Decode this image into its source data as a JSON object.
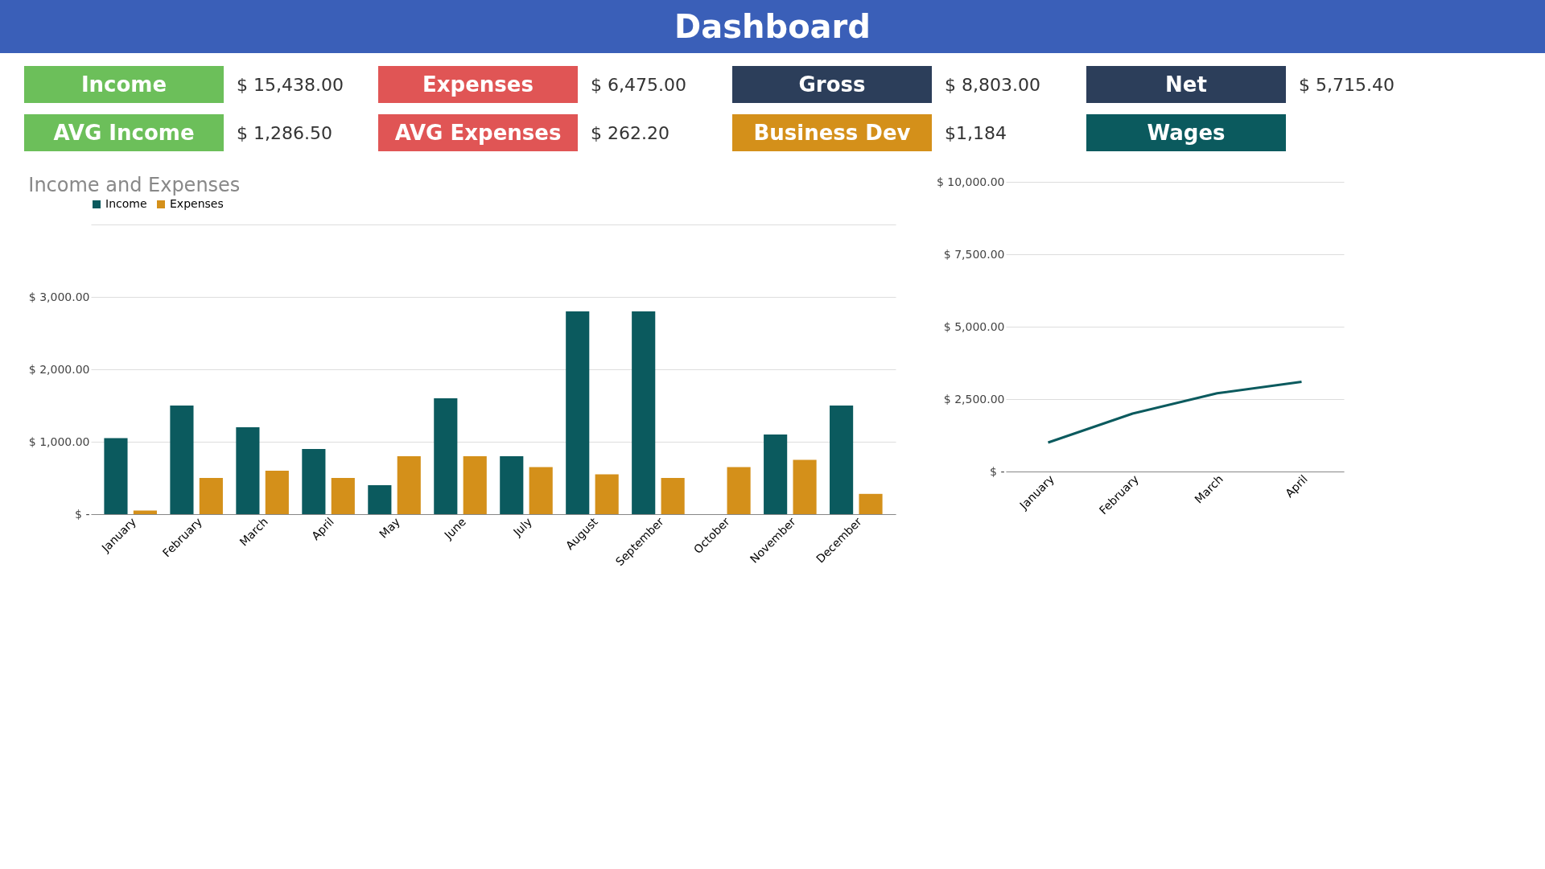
{
  "chart_data": [
    {
      "type": "other",
      "title": "Dashboard",
      "categories": [
        "Income",
        "Expenses",
        "Gross",
        "Net",
        "AVG Income",
        "AVG Expenses",
        "Business Dev",
        "Wages"
      ],
      "value_labels": [
        "$ 15,438.00",
        "$ 6,475.00",
        "$ 8,803.00",
        "$ 5,715.40",
        "$ 1,286.50",
        "$ 262.20",
        "$1,184",
        null
      ],
      "colors": [
        "#6cbf5a",
        "#e05555",
        "#2c3e5a",
        "#2c3e5a",
        "#6cbf5a",
        "#e05555",
        "#d4901a",
        "#0b5a5e"
      ]
    },
    {
      "type": "bar",
      "title": "Income and Expenses",
      "categories": [
        "January",
        "February",
        "March",
        "April",
        "May",
        "June",
        "July",
        "August",
        "September",
        "October",
        "November",
        "December"
      ],
      "series": [
        {
          "name": "Income",
          "color": "#0b5a5e",
          "values": [
            1050,
            1500,
            1200,
            900,
            400,
            1600,
            800,
            2800,
            2800,
            0,
            1100,
            1500
          ]
        },
        {
          "name": "Expenses",
          "color": "#d4901a",
          "values": [
            50,
            500,
            600,
            500,
            800,
            800,
            650,
            550,
            500,
            650,
            750,
            280
          ]
        }
      ],
      "ylim": [
        0,
        4000
      ],
      "yticks": [
        {
          "value": 0,
          "label": "$ -"
        },
        {
          "value": 1000,
          "label": "$ 1,000.00"
        },
        {
          "value": 2000,
          "label": "$ 2,000.00"
        },
        {
          "value": 3000,
          "label": "$ 3,000.00"
        },
        {
          "value": 4000,
          "label": null
        }
      ],
      "grid": "y",
      "legend": "top"
    },
    {
      "type": "line",
      "categories": [
        "January",
        "February",
        "March",
        "April"
      ],
      "series": [
        {
          "color": "#0b5a5e",
          "values": [
            1000,
            2000,
            2700,
            3100
          ]
        }
      ],
      "ylim": [
        0,
        10000
      ],
      "yticks": [
        {
          "value": 0,
          "label": "$ -"
        },
        {
          "value": 2500,
          "label": "$ 2,500.00"
        },
        {
          "value": 5000,
          "label": "$ 5,000.00"
        },
        {
          "value": 7500,
          "label": "$ 7,500.00"
        },
        {
          "value": 10000,
          "label": "$ 10,000.00"
        }
      ],
      "grid": "y"
    }
  ]
}
